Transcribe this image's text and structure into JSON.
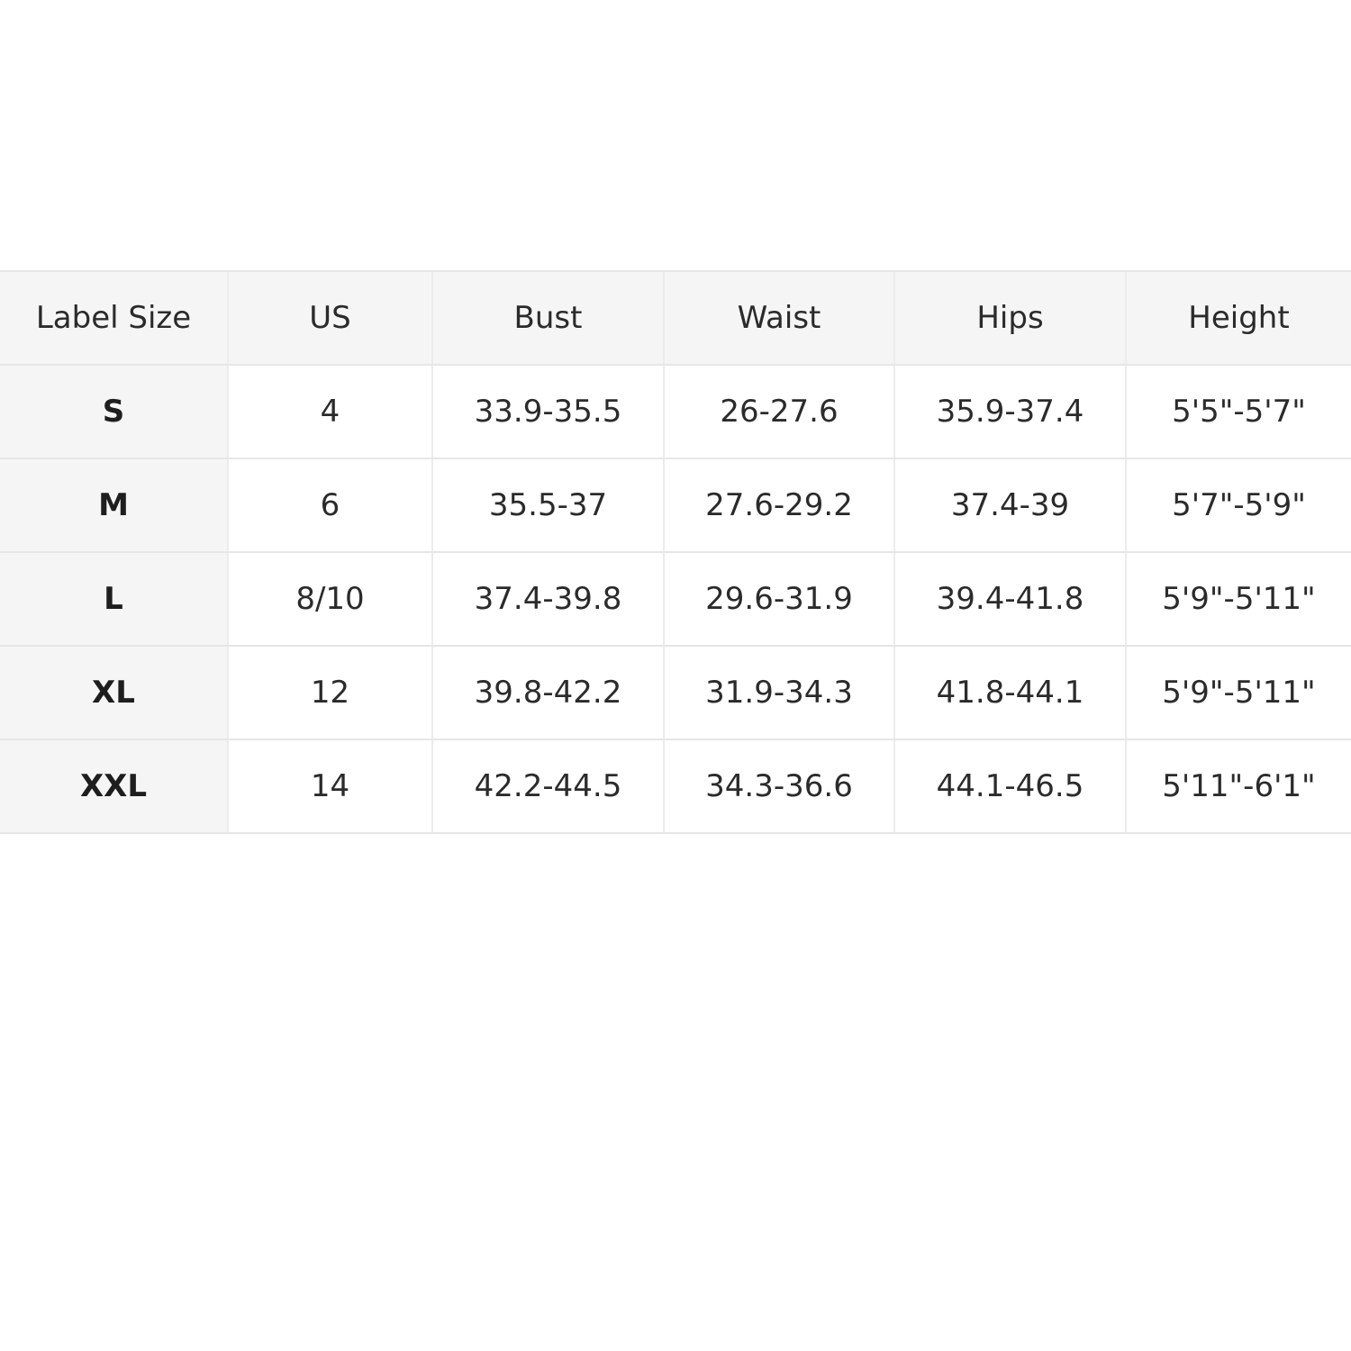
{
  "size_chart": {
    "headers": [
      "Label Size",
      "US",
      "Bust",
      "Waist",
      "Hips",
      "Height"
    ],
    "rows": [
      [
        "S",
        "4",
        "33.9-35.5",
        "26-27.6",
        "35.9-37.4",
        "5'5\"-5'7\""
      ],
      [
        "M",
        "6",
        "35.5-37",
        "27.6-29.2",
        "37.4-39",
        "5'7\"-5'9\""
      ],
      [
        "L",
        "8/10",
        "37.4-39.8",
        "29.6-31.9",
        "39.4-41.8",
        "5'9\"-5'11\""
      ],
      [
        "XL",
        "12",
        "39.8-42.2",
        "31.9-34.3",
        "41.8-44.1",
        "5'9\"-5'11\""
      ],
      [
        "XXL",
        "14",
        "42.2-44.5",
        "34.3-36.6",
        "44.1-46.5",
        "5'11\"-6'1\""
      ]
    ]
  },
  "colors": {
    "background": "#ffffff",
    "header_bg": "#f5f5f5",
    "label_col_bg": "#f5f5f5",
    "border": "#e6e6e6",
    "text": "#2b2b2b"
  }
}
